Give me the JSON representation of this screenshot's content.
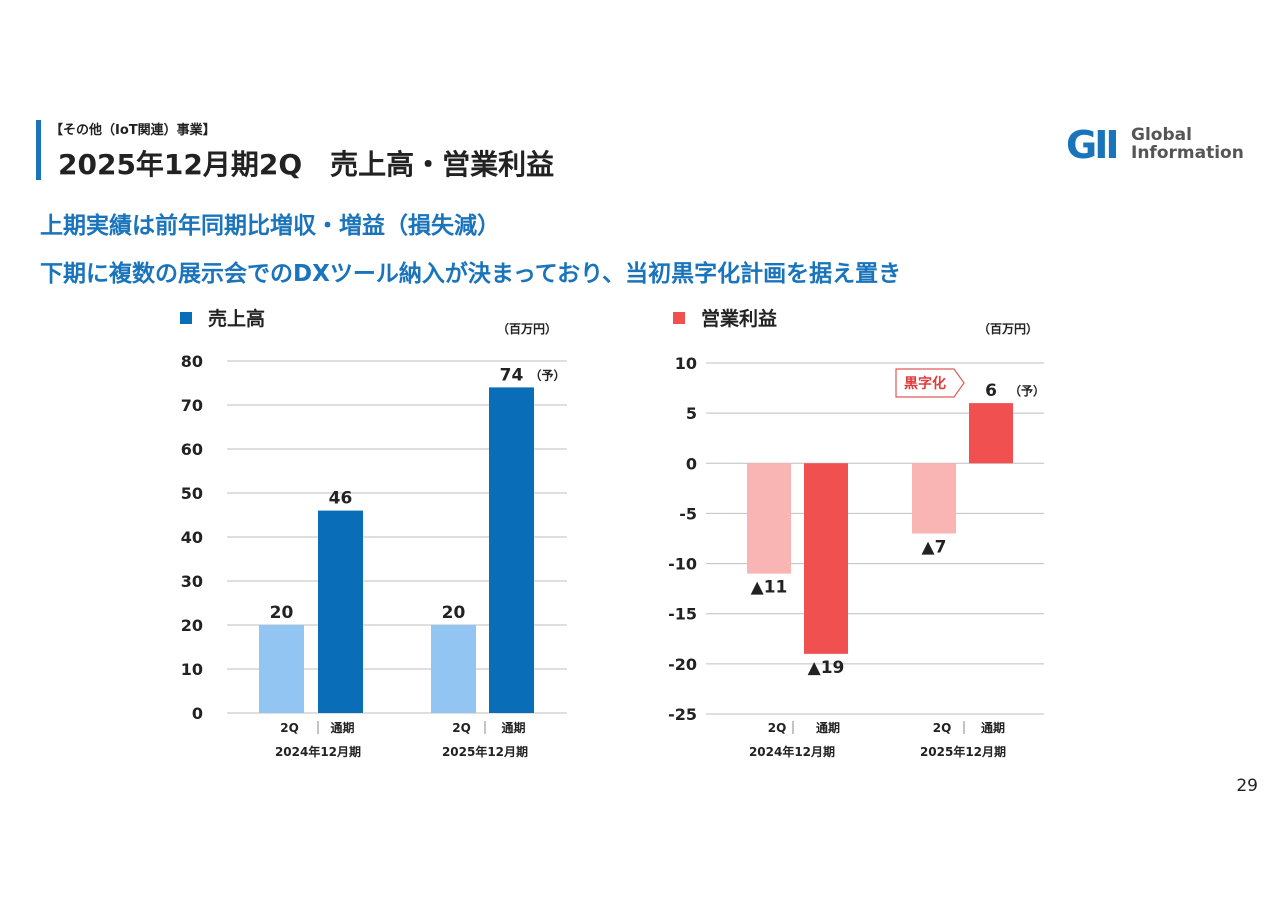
{
  "header": {
    "category": "【その他（IoT関連）事業】",
    "title": "2025年12月期2Q　売上高・営業利益",
    "logo_text_line1": "Global",
    "logo_text_line2": "Information",
    "logo_mark": "GII"
  },
  "lead": {
    "line1": "上期実績は前年同期比増収・増益（損失減）",
    "line2": "下期に複数の展示会でのDXツール納入が決まっており、当初黒字化計画を据え置き"
  },
  "page_number": "29",
  "colors": {
    "accent": "#1a74bb",
    "sales_light": "#92c5f2",
    "sales_dark": "#0a6db8",
    "profit_light": "#f9b4b4",
    "profit_dark": "#f05050"
  },
  "chart_data": [
    {
      "type": "bar",
      "title": "売上高",
      "unit": "（百万円）",
      "ylim": [
        0,
        80
      ],
      "yticks": [
        0,
        10,
        20,
        30,
        40,
        50,
        60,
        70,
        80
      ],
      "groups": [
        "2024年12月期",
        "2025年12月期"
      ],
      "bar_labels": [
        "2Q",
        "通期"
      ],
      "bars": [
        {
          "group": 0,
          "label": "2Q",
          "value": 20,
          "display": "20",
          "color": "#92c5f2"
        },
        {
          "group": 0,
          "label": "通期",
          "value": 46,
          "display": "46",
          "color": "#0a6db8"
        },
        {
          "group": 1,
          "label": "2Q",
          "value": 20,
          "display": "20",
          "color": "#92c5f2"
        },
        {
          "group": 1,
          "label": "通期",
          "value": 74,
          "display": "74",
          "color": "#0a6db8",
          "note": "（予）"
        }
      ]
    },
    {
      "type": "bar",
      "title": "営業利益",
      "unit": "（百万円）",
      "ylim": [
        -25,
        10
      ],
      "yticks": [
        10,
        5,
        0,
        -5,
        -10,
        -15,
        -20,
        -25
      ],
      "groups": [
        "2024年12月期",
        "2025年12月期"
      ],
      "bar_labels": [
        "2Q",
        "通期"
      ],
      "callout": "黒字化",
      "bars": [
        {
          "group": 0,
          "label": "2Q",
          "value": -11,
          "display": "▲11",
          "color": "#f9b4b4"
        },
        {
          "group": 0,
          "label": "通期",
          "value": -19,
          "display": "▲19",
          "color": "#f05050"
        },
        {
          "group": 1,
          "label": "2Q",
          "value": -7,
          "display": "▲7",
          "color": "#f9b4b4"
        },
        {
          "group": 1,
          "label": "通期",
          "value": 6,
          "display": "6",
          "color": "#f05050",
          "note": "（予）"
        }
      ]
    }
  ]
}
